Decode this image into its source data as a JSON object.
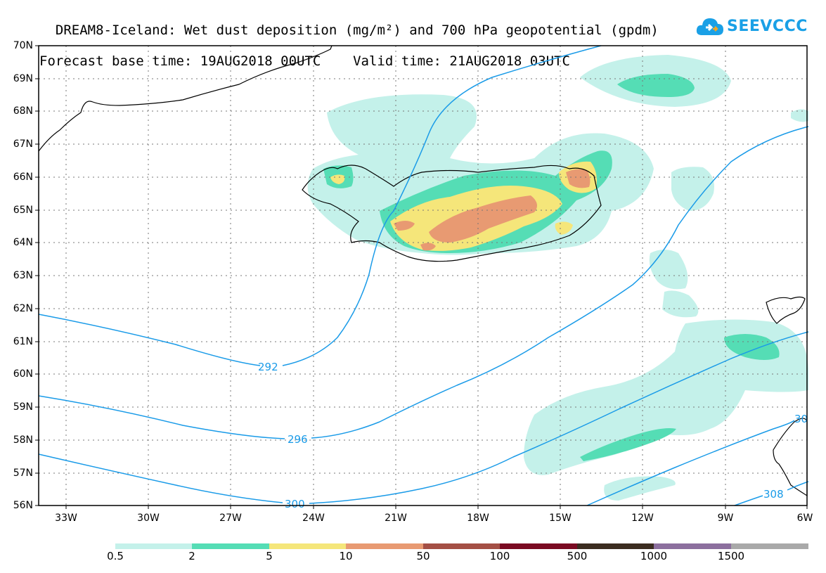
{
  "title": {
    "line1": "DREAM8-Iceland: Wet dust deposition (mg/m²) and 700 hPa geopotential (gpdm)",
    "line2": "Forecast base time: 19AUG2018 00UTC    Valid time: 21AUG2018 03UTC"
  },
  "logo": {
    "text": "SEEVCCC",
    "color": "#1aa0e6"
  },
  "axes": {
    "lat_labels": [
      "70N",
      "69N",
      "68N",
      "67N",
      "66N",
      "65N",
      "64N",
      "63N",
      "62N",
      "61N",
      "60N",
      "59N",
      "58N",
      "57N",
      "56N"
    ],
    "lon_labels": [
      "33W",
      "30W",
      "27W",
      "24W",
      "21W",
      "18W",
      "15W",
      "12W",
      "9W",
      "6W"
    ]
  },
  "contours": {
    "color": "#1a9be8",
    "labels": [
      "292",
      "296",
      "300",
      "30",
      "308"
    ]
  },
  "colorbar": {
    "colors": [
      "#c4f1ea",
      "#55ddb5",
      "#f5e67a",
      "#e89a72",
      "#a44f45",
      "#7a0a22",
      "#3b2c20",
      "#8c6f9e",
      "#a9a9a9"
    ],
    "labels": [
      "0.5",
      "2",
      "5",
      "10",
      "50",
      "100",
      "500",
      "1000",
      "1500"
    ]
  }
}
